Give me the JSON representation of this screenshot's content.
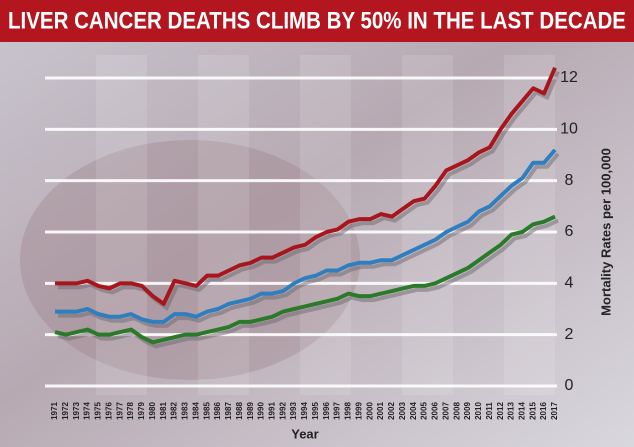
{
  "chart_data": {
    "type": "line",
    "title": "LIVER CANCER DEATHS CLIMB BY 50% IN THE LAST DECADE",
    "x_label": "Year",
    "y_label": "Mortality Rates per 100,000",
    "x": [
      1971,
      1972,
      1973,
      1974,
      1975,
      1976,
      1977,
      1978,
      1979,
      1980,
      1981,
      1982,
      1983,
      1984,
      1985,
      1986,
      1987,
      1988,
      1989,
      1990,
      1991,
      1992,
      1993,
      1994,
      1995,
      1996,
      1997,
      1998,
      1999,
      2000,
      2001,
      2002,
      2003,
      2004,
      2005,
      2006,
      2007,
      2008,
      2009,
      2010,
      2011,
      2012,
      2013,
      2014,
      2015,
      2016,
      2017
    ],
    "xlim": [
      1971,
      2017
    ],
    "ylim": [
      0,
      12.6
    ],
    "yticks": [
      0,
      2,
      4,
      6,
      8,
      10,
      12
    ],
    "grid": true,
    "series": [
      {
        "color": "#a8161d",
        "values": [
          4.0,
          4.0,
          4.0,
          4.1,
          3.9,
          3.8,
          4.0,
          4.0,
          3.9,
          3.5,
          3.2,
          4.1,
          4.0,
          3.9,
          4.3,
          4.3,
          4.5,
          4.7,
          4.8,
          5.0,
          5.0,
          5.2,
          5.4,
          5.5,
          5.8,
          6.0,
          6.1,
          6.4,
          6.5,
          6.5,
          6.7,
          6.6,
          6.9,
          7.2,
          7.3,
          7.8,
          8.4,
          8.6,
          8.8,
          9.1,
          9.3,
          10.0,
          10.6,
          11.1,
          11.6,
          11.4,
          12.4
        ]
      },
      {
        "color": "#2f7fbf",
        "values": [
          2.9,
          2.9,
          2.9,
          3.0,
          2.8,
          2.7,
          2.7,
          2.8,
          2.6,
          2.5,
          2.5,
          2.8,
          2.8,
          2.7,
          2.9,
          3.0,
          3.2,
          3.3,
          3.4,
          3.6,
          3.6,
          3.7,
          4.0,
          4.2,
          4.3,
          4.5,
          4.5,
          4.7,
          4.8,
          4.8,
          4.9,
          4.9,
          5.1,
          5.3,
          5.5,
          5.7,
          6.0,
          6.2,
          6.4,
          6.8,
          7.0,
          7.4,
          7.8,
          8.1,
          8.7,
          8.7,
          9.2
        ]
      },
      {
        "color": "#2a7a2a",
        "values": [
          2.1,
          2.0,
          2.1,
          2.2,
          2.0,
          2.0,
          2.1,
          2.2,
          1.9,
          1.7,
          1.8,
          1.9,
          2.0,
          2.0,
          2.1,
          2.2,
          2.3,
          2.5,
          2.5,
          2.6,
          2.7,
          2.9,
          3.0,
          3.1,
          3.2,
          3.3,
          3.4,
          3.6,
          3.5,
          3.5,
          3.6,
          3.7,
          3.8,
          3.9,
          3.9,
          4.0,
          4.2,
          4.4,
          4.6,
          4.9,
          5.2,
          5.5,
          5.9,
          6.0,
          6.3,
          6.4,
          6.6
        ]
      }
    ]
  }
}
